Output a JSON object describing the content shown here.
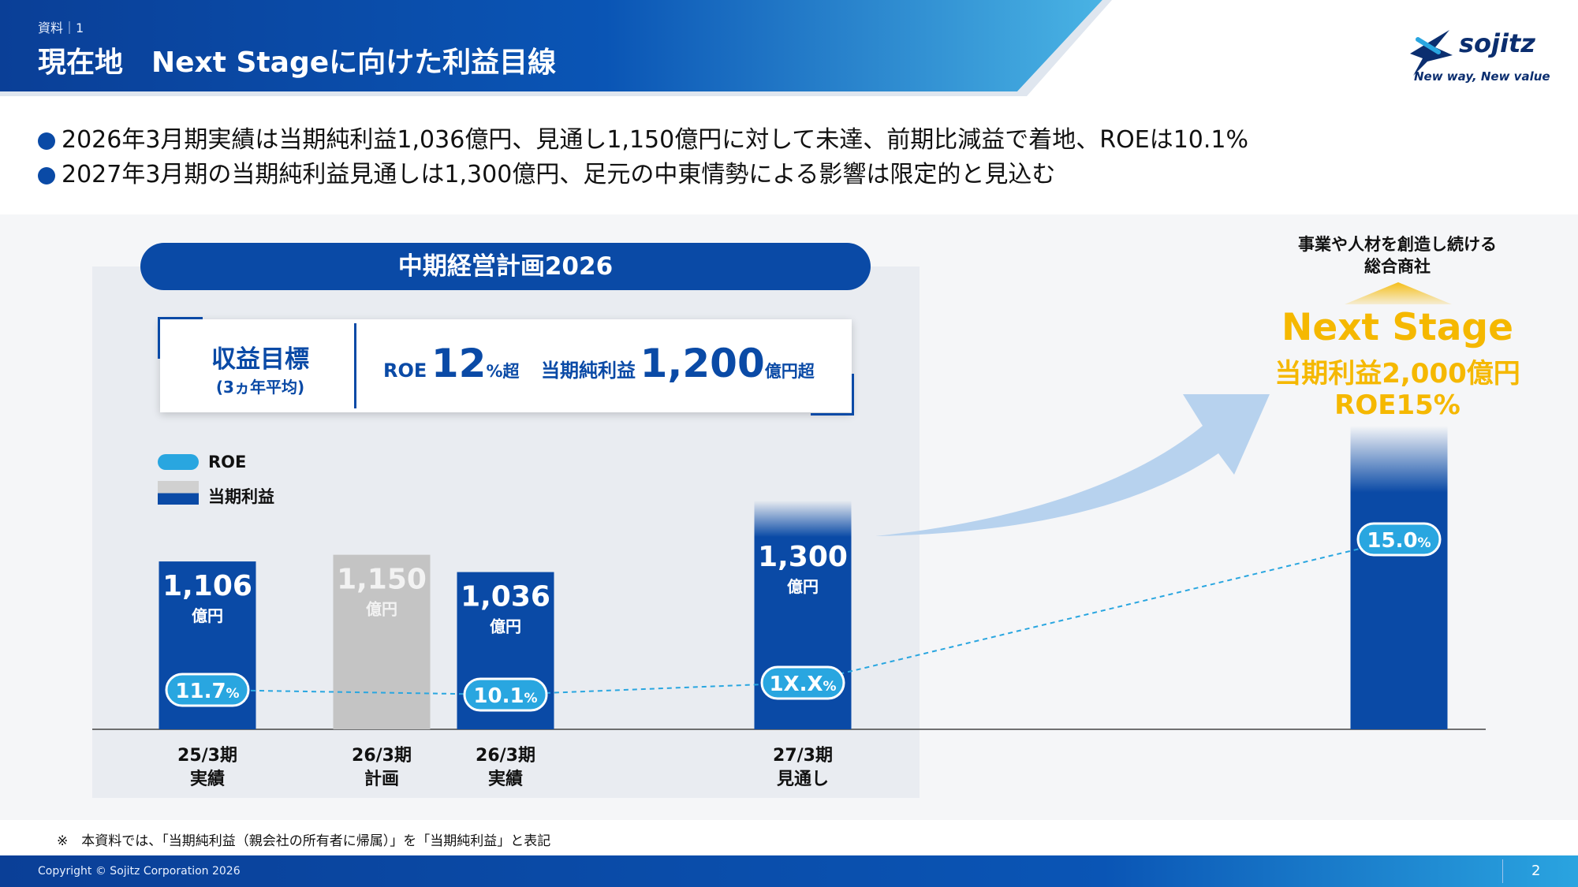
{
  "header": {
    "section_label": "資料｜1",
    "title": "現在地　Next Stageに向けた利益目線"
  },
  "logo": {
    "name": "sojitz",
    "tagline": "New way, New value"
  },
  "bullets": [
    "2026年3月期実績は当期純利益1,036億円、見通し1,150億円に対して未達、前期比減益で着地、ROEは10.1%",
    "2027年3月期の当期純利益見通しは1,300億円、足元の中東情勢による影響は限定的と見込む"
  ],
  "plan": {
    "title": "中期経営計画2026",
    "target_label": "収益目標",
    "target_sub": "(3ヵ年平均)",
    "roe_prefix": "ROE",
    "roe_value": "12",
    "roe_suffix": "%超",
    "profit_prefix": "当期純利益",
    "profit_value": "1,200",
    "profit_suffix": "億円超"
  },
  "legend": {
    "roe": "ROE",
    "profit": "当期利益"
  },
  "next_stage": {
    "caption_line1": "事業や人材を創造し続ける",
    "caption_line2": "総合商社",
    "title": "Next Stage",
    "profit": "当期利益2,000億円",
    "roe": "ROE15%"
  },
  "chart_data": {
    "type": "bar",
    "categories": [
      "25/3期\n実績",
      "26/3期\n計画",
      "26/3期\n実績",
      "27/3期\n見通し",
      "Next Stage"
    ],
    "series": [
      {
        "name": "当期利益",
        "unit": "億円",
        "values": [
          1106,
          1150,
          1036,
          1300,
          2000
        ],
        "labels": [
          "1,106",
          "1,150",
          "1,036",
          "1,300",
          null
        ],
        "colors": [
          "#0a4aa6",
          "#c4c4c4",
          "#0a4aa6",
          "#0a4aa6",
          "#0a4aa6"
        ]
      },
      {
        "name": "ROE",
        "unit": "%",
        "values": [
          11.7,
          null,
          10.1,
          null,
          15.0
        ],
        "labels": [
          "11.7",
          null,
          "10.1",
          "1X.X",
          "15.0"
        ]
      }
    ],
    "colors": {
      "profit": "#0a4aa6",
      "plan": "#c4c4c4",
      "roe": "#29a6e0",
      "accent": "#f5b800",
      "arrow": "#b7d2ee"
    }
  },
  "footnote": "※　本資料では、「当期純利益（親会社の所有者に帰属）」を「当期純利益」と表記",
  "footer": {
    "copyright": "Copyright © Sojitz Corporation 2026",
    "page_number": "2"
  }
}
